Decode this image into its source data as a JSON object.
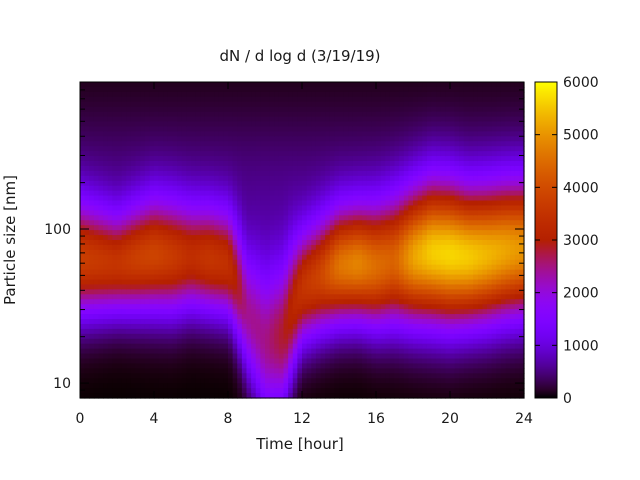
{
  "chart_data": {
    "type": "heatmap",
    "title": "dN / d log d (3/19/19)",
    "xlabel": "Time [hour]",
    "ylabel": "Particle size [nm]",
    "xlim": [
      0,
      24
    ],
    "ylim": [
      8,
      900
    ],
    "y_scale": "log",
    "x_ticks": [
      0,
      4,
      8,
      12,
      16,
      20,
      24
    ],
    "x_tick_labels": [
      "0",
      "4",
      "8",
      "12",
      "16",
      "20",
      "24"
    ],
    "y_ticks": [
      10,
      100
    ],
    "y_tick_labels": [
      "10",
      "100"
    ],
    "colorbar": {
      "min": 0,
      "max": 6000,
      "ticks": [
        0,
        1000,
        2000,
        3000,
        4000,
        5000,
        6000
      ],
      "tick_labels": [
        "0",
        "1000",
        "2000",
        "3000",
        "4000",
        "5000",
        "6000"
      ],
      "colormap": "gnuplot-pm3d"
    },
    "grid": false,
    "x_time_hours": [
      0,
      1,
      2,
      3,
      4,
      5,
      6,
      7,
      8,
      9,
      10,
      11,
      12,
      13,
      14,
      15,
      16,
      17,
      18,
      19,
      20,
      21,
      22,
      23,
      24
    ],
    "mode_diameter_nm": [
      62,
      60,
      58,
      62,
      66,
      64,
      64,
      62,
      58,
      28,
      18,
      20,
      40,
      48,
      56,
      58,
      56,
      60,
      64,
      68,
      66,
      64,
      66,
      70,
      72
    ],
    "mode_width_log": [
      0.36,
      0.34,
      0.32,
      0.34,
      0.36,
      0.36,
      0.34,
      0.34,
      0.34,
      0.4,
      0.5,
      0.48,
      0.36,
      0.36,
      0.36,
      0.36,
      0.38,
      0.4,
      0.42,
      0.44,
      0.44,
      0.42,
      0.42,
      0.42,
      0.42
    ],
    "peak_concentration": [
      3400,
      3300,
      3200,
      3400,
      3500,
      3300,
      3000,
      3200,
      3100,
      2300,
      2400,
      2800,
      3300,
      3600,
      4300,
      4500,
      4200,
      4000,
      4800,
      5200,
      5300,
      5200,
      5000,
      4800,
      4600
    ]
  }
}
